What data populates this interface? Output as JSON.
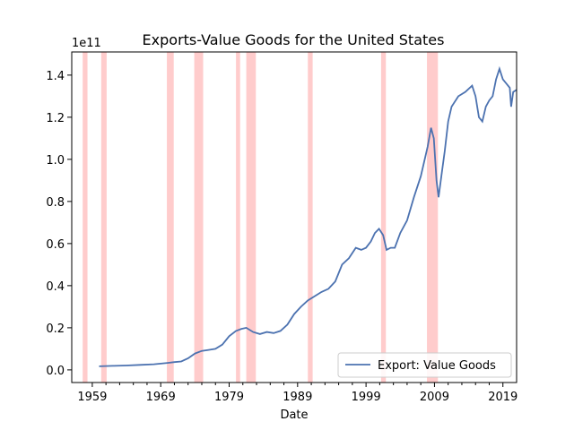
{
  "chart_data": {
    "type": "line",
    "title": "Exports-Value Goods for the United States",
    "xlabel": "Date",
    "ylabel": "",
    "y_scale_label": "1e11",
    "xlim": [
      1956.0,
      2021.0
    ],
    "ylim": [
      -0.06,
      1.51
    ],
    "x_tick_labels": [
      "1959",
      "1969",
      "1979",
      "1989",
      "1999",
      "2009",
      "2019"
    ],
    "y_tick_labels": [
      "0.0",
      "0.2",
      "0.4",
      "0.6",
      "0.8",
      "1.0",
      "1.2",
      "1.4"
    ],
    "legend": {
      "position": "lower-right",
      "label": "Export: Value Goods"
    },
    "colors": {
      "line": "#4c72b0",
      "recession": "#ff9999"
    },
    "recessions": [
      [
        1957.6,
        1958.3
      ],
      [
        1960.3,
        1961.1
      ],
      [
        1969.9,
        1970.9
      ],
      [
        1973.9,
        1975.2
      ],
      [
        1980.0,
        1980.6
      ],
      [
        1981.5,
        1982.9
      ],
      [
        1990.5,
        1991.2
      ],
      [
        2001.2,
        2001.9
      ],
      [
        2007.9,
        2009.5
      ]
    ],
    "series": [
      {
        "name": "Export: Value Goods",
        "x": [
          1960.0,
          1962.0,
          1964.0,
          1966.0,
          1968.0,
          1970.0,
          1971.0,
          1972.0,
          1973.0,
          1974.0,
          1975.0,
          1976.0,
          1977.0,
          1978.0,
          1979.0,
          1980.0,
          1980.8,
          1981.5,
          1982.5,
          1983.5,
          1984.5,
          1985.5,
          1986.5,
          1987.5,
          1988.5,
          1989.5,
          1990.5,
          1991.5,
          1992.5,
          1993.5,
          1994.5,
          1995.5,
          1996.5,
          1997.5,
          1998.3,
          1999.0,
          1999.7,
          2000.3,
          2000.9,
          2001.5,
          2002.0,
          2002.6,
          2003.2,
          2004.0,
          2005.0,
          2006.0,
          2007.0,
          2008.0,
          2008.5,
          2008.9,
          2009.3,
          2009.6,
          2010.0,
          2010.5,
          2011.0,
          2011.5,
          2012.5,
          2013.5,
          2014.5,
          2015.0,
          2015.5,
          2016.0,
          2016.5,
          2017.0,
          2017.5,
          2018.0,
          2018.5,
          2019.0,
          2019.5,
          2020.0,
          2020.2,
          2020.5,
          2021.0
        ],
        "values": [
          0.017,
          0.019,
          0.021,
          0.024,
          0.027,
          0.033,
          0.037,
          0.04,
          0.055,
          0.078,
          0.09,
          0.095,
          0.1,
          0.12,
          0.16,
          0.185,
          0.195,
          0.2,
          0.18,
          0.17,
          0.18,
          0.175,
          0.185,
          0.215,
          0.265,
          0.3,
          0.33,
          0.35,
          0.37,
          0.385,
          0.42,
          0.5,
          0.53,
          0.58,
          0.57,
          0.58,
          0.61,
          0.65,
          0.67,
          0.64,
          0.57,
          0.58,
          0.58,
          0.65,
          0.71,
          0.82,
          0.92,
          1.06,
          1.15,
          1.1,
          0.9,
          0.82,
          0.92,
          1.04,
          1.18,
          1.25,
          1.3,
          1.32,
          1.35,
          1.3,
          1.2,
          1.18,
          1.25,
          1.28,
          1.3,
          1.38,
          1.43,
          1.38,
          1.36,
          1.34,
          1.25,
          1.32,
          1.33
        ]
      }
    ]
  }
}
